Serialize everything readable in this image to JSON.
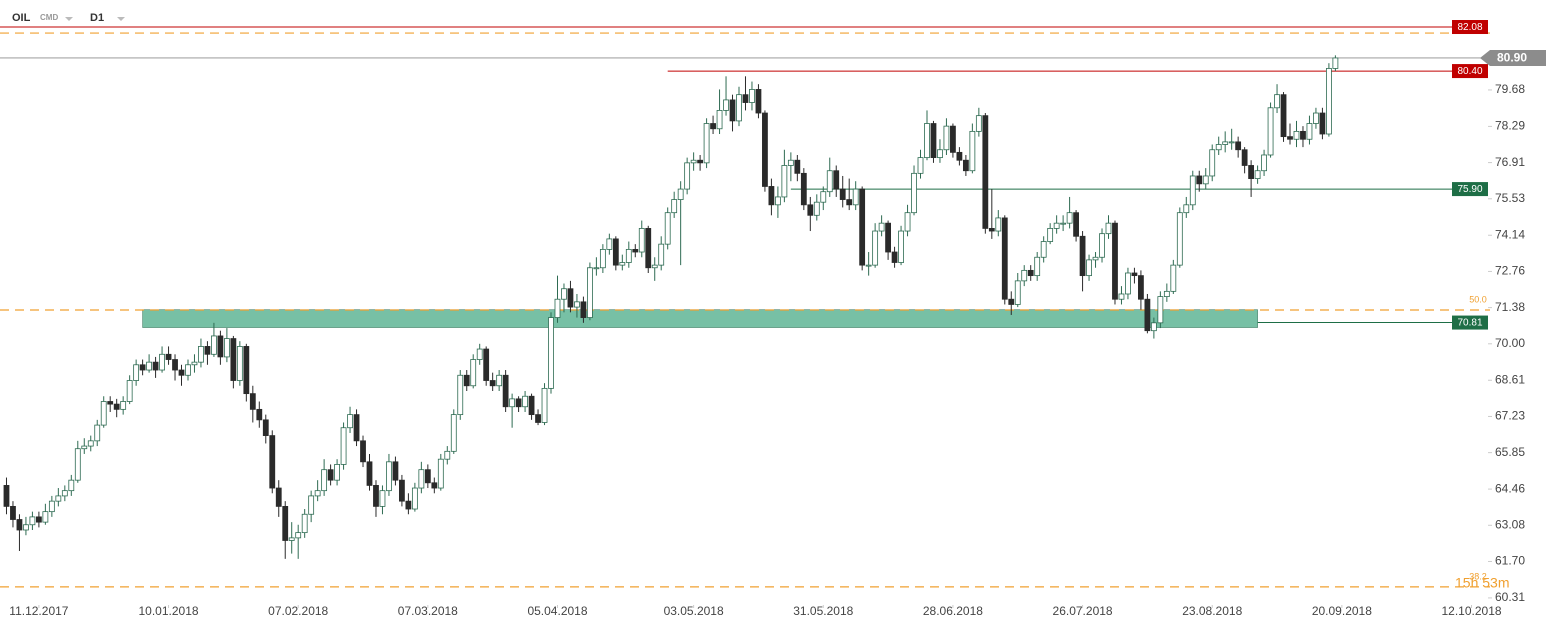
{
  "header": {
    "symbol": "OIL",
    "group": "CMD",
    "interval": "D1"
  },
  "countdown": "15h 53m",
  "chart_data": {
    "type": "candlestick",
    "up_color": "#ffffff",
    "up_border": "#2e6b52",
    "down_color": "#2a2a2a",
    "xlim": [
      -1,
      227
    ],
    "ylim": [
      60.04,
      83.11
    ],
    "xticks": [
      {
        "value": 5,
        "label": "11.12.2017"
      },
      {
        "value": 25,
        "label": "10.01.2018"
      },
      {
        "value": 45,
        "label": "07.02.2018"
      },
      {
        "value": 65,
        "label": "07.03.2018"
      },
      {
        "value": 85,
        "label": "05.04.2018"
      },
      {
        "value": 106,
        "label": "03.05.2018"
      },
      {
        "value": 126,
        "label": "31.05.2018"
      },
      {
        "value": 146,
        "label": "28.06.2018"
      },
      {
        "value": 166,
        "label": "26.07.2018"
      },
      {
        "value": 186,
        "label": "23.08.2018"
      },
      {
        "value": 206,
        "label": "20.09.2018"
      },
      {
        "value": 226,
        "label": "12.10.2018"
      }
    ],
    "yticks": [
      60.31,
      {
        "value": 61.7,
        "label": "61.70"
      },
      63.08,
      64.46,
      65.85,
      67.23,
      68.61,
      {
        "value": 70,
        "label": "70.00"
      },
      71.38,
      72.76,
      74.14,
      75.53,
      76.91,
      78.29,
      79.68
    ],
    "price_lines": [
      {
        "value": 82.08,
        "color": "#c00000",
        "start": -1
      },
      {
        "value": 80.4,
        "label": "80.40",
        "color": "#c00000",
        "start": 102
      },
      {
        "value": 75.9,
        "label": "75.90",
        "color": "#1e6e46",
        "start": 121
      },
      {
        "value": 70.81,
        "color": "#1e6e46",
        "start": 193
      }
    ],
    "last_price": {
      "value": 80.9,
      "label": "80.90",
      "color": "#8c8c8c"
    },
    "levels": [
      {
        "value": 81.85
      },
      {
        "value": 71.29,
        "label": "50.0"
      },
      {
        "value": 60.73,
        "label": "38.2"
      }
    ],
    "level_color": "#f0a030",
    "zone": {
      "from": 70.62,
      "to": 71.3,
      "start": 21,
      "end": 193,
      "color": "#5fb595"
    },
    "ohlc": [
      [
        64.6,
        64.9,
        63.5,
        63.8
      ],
      [
        63.8,
        64.0,
        63.0,
        63.3
      ],
      [
        63.3,
        63.5,
        62.1,
        62.9
      ],
      [
        62.9,
        63.4,
        62.7,
        63.1
      ],
      [
        63.1,
        63.6,
        62.9,
        63.4
      ],
      [
        63.4,
        63.6,
        63.0,
        63.2
      ],
      [
        63.2,
        63.9,
        63.1,
        63.6
      ],
      [
        63.6,
        64.2,
        63.4,
        64.0
      ],
      [
        64.0,
        64.5,
        63.8,
        64.2
      ],
      [
        64.2,
        64.6,
        64.0,
        64.4
      ],
      [
        64.4,
        65.0,
        64.2,
        64.8
      ],
      [
        64.8,
        66.3,
        64.7,
        66.0
      ],
      [
        66.0,
        66.4,
        65.8,
        66.1
      ],
      [
        66.1,
        66.5,
        65.9,
        66.3
      ],
      [
        66.3,
        67.1,
        66.1,
        66.9
      ],
      [
        66.9,
        68.0,
        66.8,
        67.8
      ],
      [
        67.8,
        68.0,
        67.4,
        67.7
      ],
      [
        67.7,
        67.9,
        67.2,
        67.5
      ],
      [
        67.5,
        68.0,
        67.3,
        67.8
      ],
      [
        67.8,
        68.8,
        67.7,
        68.6
      ],
      [
        68.6,
        69.4,
        68.4,
        69.2
      ],
      [
        69.2,
        69.4,
        68.8,
        69.0
      ],
      [
        69.0,
        69.6,
        68.9,
        69.3
      ],
      [
        69.3,
        69.5,
        68.7,
        69.0
      ],
      [
        69.0,
        69.9,
        68.9,
        69.6
      ],
      [
        69.6,
        69.9,
        69.2,
        69.4
      ],
      [
        69.4,
        69.6,
        68.6,
        69.0
      ],
      [
        69.0,
        69.2,
        68.4,
        68.8
      ],
      [
        68.8,
        69.4,
        68.6,
        69.2
      ],
      [
        69.2,
        69.6,
        68.9,
        69.3
      ],
      [
        69.3,
        70.2,
        69.1,
        69.9
      ],
      [
        69.9,
        70.1,
        69.2,
        69.6
      ],
      [
        69.6,
        70.8,
        69.5,
        70.3
      ],
      [
        70.3,
        70.5,
        69.2,
        69.5
      ],
      [
        69.5,
        70.6,
        69.3,
        70.2
      ],
      [
        70.2,
        70.3,
        68.3,
        68.6
      ],
      [
        68.6,
        70.1,
        68.4,
        69.9
      ],
      [
        69.9,
        70.0,
        67.8,
        68.1
      ],
      [
        68.1,
        68.4,
        67.0,
        67.5
      ],
      [
        67.5,
        67.8,
        66.8,
        67.1
      ],
      [
        67.1,
        67.3,
        66.2,
        66.5
      ],
      [
        66.5,
        66.7,
        64.3,
        64.5
      ],
      [
        64.5,
        64.8,
        63.4,
        63.8
      ],
      [
        63.8,
        64.0,
        61.8,
        62.5
      ],
      [
        62.5,
        63.2,
        62.0,
        62.6
      ],
      [
        62.6,
        63.1,
        61.8,
        62.8
      ],
      [
        62.8,
        63.7,
        62.6,
        63.5
      ],
      [
        63.5,
        64.4,
        63.2,
        64.2
      ],
      [
        64.2,
        64.8,
        64.0,
        64.4
      ],
      [
        64.4,
        65.6,
        64.2,
        65.2
      ],
      [
        65.2,
        65.4,
        64.6,
        64.8
      ],
      [
        64.8,
        65.6,
        64.6,
        65.4
      ],
      [
        65.4,
        67.0,
        65.2,
        66.8
      ],
      [
        66.8,
        67.6,
        66.6,
        67.3
      ],
      [
        67.3,
        67.5,
        66.1,
        66.3
      ],
      [
        66.3,
        66.5,
        65.3,
        65.5
      ],
      [
        65.5,
        65.8,
        64.4,
        64.6
      ],
      [
        64.6,
        64.8,
        63.4,
        63.8
      ],
      [
        63.8,
        64.6,
        63.5,
        64.4
      ],
      [
        64.4,
        65.8,
        64.2,
        65.5
      ],
      [
        65.5,
        65.7,
        64.6,
        64.8
      ],
      [
        64.8,
        65.0,
        63.8,
        64.0
      ],
      [
        64.0,
        64.3,
        63.5,
        63.7
      ],
      [
        63.7,
        64.7,
        63.6,
        64.5
      ],
      [
        64.5,
        65.5,
        64.3,
        65.2
      ],
      [
        65.2,
        65.4,
        64.5,
        64.7
      ],
      [
        64.7,
        64.9,
        64.3,
        64.5
      ],
      [
        64.5,
        65.8,
        64.4,
        65.6
      ],
      [
        65.6,
        66.1,
        65.4,
        65.9
      ],
      [
        65.9,
        67.5,
        65.8,
        67.3
      ],
      [
        67.3,
        69.0,
        67.1,
        68.8
      ],
      [
        68.8,
        69.0,
        68.2,
        68.4
      ],
      [
        68.4,
        69.6,
        68.3,
        69.4
      ],
      [
        69.4,
        70.0,
        69.2,
        69.8
      ],
      [
        69.8,
        69.9,
        68.4,
        68.6
      ],
      [
        68.6,
        68.9,
        68.2,
        68.4
      ],
      [
        68.4,
        69.0,
        68.2,
        68.8
      ],
      [
        68.8,
        69.0,
        67.4,
        67.6
      ],
      [
        67.6,
        68.1,
        66.8,
        67.9
      ],
      [
        67.9,
        68.0,
        67.4,
        67.6
      ],
      [
        67.6,
        68.2,
        67.4,
        68.0
      ],
      [
        68.0,
        68.1,
        67.1,
        67.3
      ],
      [
        67.3,
        67.5,
        66.9,
        67.0
      ],
      [
        67.0,
        68.5,
        66.9,
        68.3
      ],
      [
        68.3,
        71.2,
        68.1,
        71.0
      ],
      [
        71.0,
        72.6,
        70.8,
        71.7
      ],
      [
        71.7,
        72.3,
        71.2,
        72.1
      ],
      [
        72.1,
        72.4,
        71.2,
        71.4
      ],
      [
        71.4,
        71.9,
        71.0,
        71.6
      ],
      [
        71.6,
        71.8,
        70.8,
        71.0
      ],
      [
        71.0,
        73.1,
        70.9,
        72.9
      ],
      [
        72.9,
        73.3,
        72.6,
        72.9
      ],
      [
        72.9,
        73.8,
        72.7,
        73.6
      ],
      [
        73.6,
        74.2,
        73.4,
        74.0
      ],
      [
        74.0,
        74.1,
        72.8,
        73.0
      ],
      [
        73.0,
        73.4,
        72.8,
        73.1
      ],
      [
        73.1,
        73.9,
        72.9,
        73.6
      ],
      [
        73.6,
        73.8,
        73.3,
        73.5
      ],
      [
        73.5,
        74.7,
        73.3,
        74.4
      ],
      [
        74.4,
        74.5,
        72.7,
        72.9
      ],
      [
        72.9,
        73.3,
        72.4,
        73.0
      ],
      [
        73.0,
        74.1,
        72.8,
        73.8
      ],
      [
        73.8,
        75.2,
        73.6,
        75.0
      ],
      [
        75.0,
        75.8,
        74.8,
        75.5
      ],
      [
        75.5,
        76.2,
        73.0,
        75.9
      ],
      [
        75.9,
        77.1,
        75.7,
        76.9
      ],
      [
        76.9,
        77.3,
        76.6,
        77.0
      ],
      [
        77.0,
        77.2,
        76.6,
        76.9
      ],
      [
        76.9,
        78.6,
        76.7,
        78.4
      ],
      [
        78.4,
        78.7,
        78.0,
        78.2
      ],
      [
        78.2,
        79.7,
        78.0,
        78.9
      ],
      [
        78.9,
        80.2,
        78.7,
        79.3
      ],
      [
        79.3,
        79.5,
        78.1,
        78.5
      ],
      [
        78.5,
        79.8,
        78.3,
        79.5
      ],
      [
        79.5,
        80.2,
        78.9,
        79.2
      ],
      [
        79.2,
        80.0,
        78.9,
        79.7
      ],
      [
        79.7,
        79.9,
        78.6,
        78.8
      ],
      [
        78.8,
        78.9,
        75.8,
        76.0
      ],
      [
        76.0,
        76.3,
        74.9,
        75.3
      ],
      [
        75.3,
        76.0,
        74.8,
        75.6
      ],
      [
        75.6,
        77.4,
        75.4,
        76.8
      ],
      [
        76.8,
        77.3,
        76.2,
        77.0
      ],
      [
        77.0,
        77.2,
        76.2,
        76.5
      ],
      [
        76.5,
        76.7,
        75.1,
        75.3
      ],
      [
        75.3,
        75.6,
        74.3,
        74.9
      ],
      [
        74.9,
        75.7,
        74.7,
        75.4
      ],
      [
        75.4,
        76.0,
        75.1,
        75.8
      ],
      [
        75.8,
        77.1,
        75.6,
        76.6
      ],
      [
        76.6,
        76.8,
        75.6,
        75.9
      ],
      [
        75.9,
        76.4,
        75.2,
        75.5
      ],
      [
        75.5,
        76.3,
        75.1,
        75.3
      ],
      [
        75.3,
        76.2,
        75.1,
        75.9
      ],
      [
        75.9,
        76.0,
        72.8,
        73.0
      ],
      [
        73.0,
        73.5,
        72.6,
        73.0
      ],
      [
        73.0,
        74.6,
        72.9,
        74.3
      ],
      [
        74.3,
        74.9,
        74.1,
        74.6
      ],
      [
        74.6,
        74.7,
        73.2,
        73.5
      ],
      [
        73.5,
        73.7,
        72.9,
        73.1
      ],
      [
        73.1,
        74.5,
        73.0,
        74.3
      ],
      [
        74.3,
        75.3,
        74.1,
        75.0
      ],
      [
        75.0,
        76.8,
        74.9,
        76.5
      ],
      [
        76.5,
        77.4,
        76.3,
        77.1
      ],
      [
        77.1,
        78.9,
        77.0,
        78.4
      ],
      [
        78.4,
        78.5,
        76.9,
        77.1
      ],
      [
        77.1,
        77.8,
        76.9,
        77.4
      ],
      [
        77.4,
        78.6,
        77.2,
        78.3
      ],
      [
        78.3,
        78.4,
        77.1,
        77.3
      ],
      [
        77.3,
        77.5,
        76.8,
        77.0
      ],
      [
        77.0,
        77.2,
        76.4,
        76.6
      ],
      [
        76.6,
        78.4,
        76.5,
        78.1
      ],
      [
        78.1,
        79.0,
        77.9,
        78.7
      ],
      [
        78.7,
        78.8,
        74.2,
        74.4
      ],
      [
        74.4,
        75.9,
        74.0,
        74.3
      ],
      [
        74.3,
        75.1,
        74.1,
        74.8
      ],
      [
        74.8,
        74.9,
        71.5,
        71.7
      ],
      [
        71.7,
        72.0,
        71.1,
        71.5
      ],
      [
        71.5,
        72.7,
        71.4,
        72.4
      ],
      [
        72.4,
        73.0,
        72.2,
        72.8
      ],
      [
        72.8,
        73.0,
        72.4,
        72.6
      ],
      [
        72.6,
        73.5,
        72.4,
        73.3
      ],
      [
        73.3,
        74.1,
        73.1,
        73.9
      ],
      [
        73.9,
        74.6,
        73.8,
        74.4
      ],
      [
        74.4,
        74.9,
        74.2,
        74.6
      ],
      [
        74.6,
        74.9,
        74.3,
        74.6
      ],
      [
        74.6,
        75.6,
        74.4,
        75.0
      ],
      [
        75.0,
        75.1,
        73.9,
        74.1
      ],
      [
        74.1,
        74.3,
        72.0,
        72.6
      ],
      [
        72.6,
        73.4,
        72.4,
        73.2
      ],
      [
        73.2,
        73.5,
        72.9,
        73.3
      ],
      [
        73.3,
        74.4,
        73.1,
        74.2
      ],
      [
        74.2,
        74.9,
        74.0,
        74.6
      ],
      [
        74.6,
        74.7,
        71.5,
        71.7
      ],
      [
        71.7,
        72.2,
        71.5,
        71.9
      ],
      [
        71.9,
        72.9,
        71.7,
        72.7
      ],
      [
        72.7,
        72.9,
        72.3,
        72.6
      ],
      [
        72.6,
        72.8,
        71.3,
        71.7
      ],
      [
        71.7,
        71.9,
        70.4,
        70.5
      ],
      [
        70.5,
        71.0,
        70.2,
        70.8
      ],
      [
        70.8,
        72.0,
        70.6,
        71.8
      ],
      [
        71.8,
        72.3,
        71.6,
        72.0
      ],
      [
        72.0,
        73.2,
        71.9,
        73.0
      ],
      [
        73.0,
        75.2,
        72.9,
        75.0
      ],
      [
        75.0,
        75.6,
        74.8,
        75.3
      ],
      [
        75.3,
        76.6,
        75.1,
        76.4
      ],
      [
        76.4,
        76.6,
        75.8,
        76.1
      ],
      [
        76.1,
        76.7,
        75.9,
        76.4
      ],
      [
        76.4,
        77.6,
        76.2,
        77.4
      ],
      [
        77.4,
        77.9,
        77.2,
        77.6
      ],
      [
        77.6,
        78.1,
        77.3,
        77.7
      ],
      [
        77.7,
        78.2,
        77.4,
        77.7
      ],
      [
        77.7,
        77.9,
        77.1,
        77.4
      ],
      [
        77.4,
        77.5,
        76.5,
        76.8
      ],
      [
        76.8,
        77.0,
        75.6,
        76.3
      ],
      [
        76.3,
        76.8,
        76.1,
        76.6
      ],
      [
        76.6,
        77.4,
        76.4,
        77.2
      ],
      [
        77.2,
        79.2,
        77.1,
        79.0
      ],
      [
        79.0,
        79.9,
        78.8,
        79.5
      ],
      [
        79.5,
        79.6,
        77.7,
        77.9
      ],
      [
        77.9,
        78.4,
        77.6,
        77.8
      ],
      [
        77.8,
        78.5,
        77.5,
        78.1
      ],
      [
        78.1,
        78.3,
        77.5,
        77.8
      ],
      [
        77.8,
        78.7,
        77.6,
        78.4
      ],
      [
        78.4,
        79.0,
        78.2,
        78.8
      ],
      [
        78.8,
        79.0,
        77.8,
        78.0
      ],
      [
        78.0,
        80.7,
        77.9,
        80.5
      ],
      [
        80.5,
        81.0,
        80.4,
        80.9
      ]
    ]
  }
}
